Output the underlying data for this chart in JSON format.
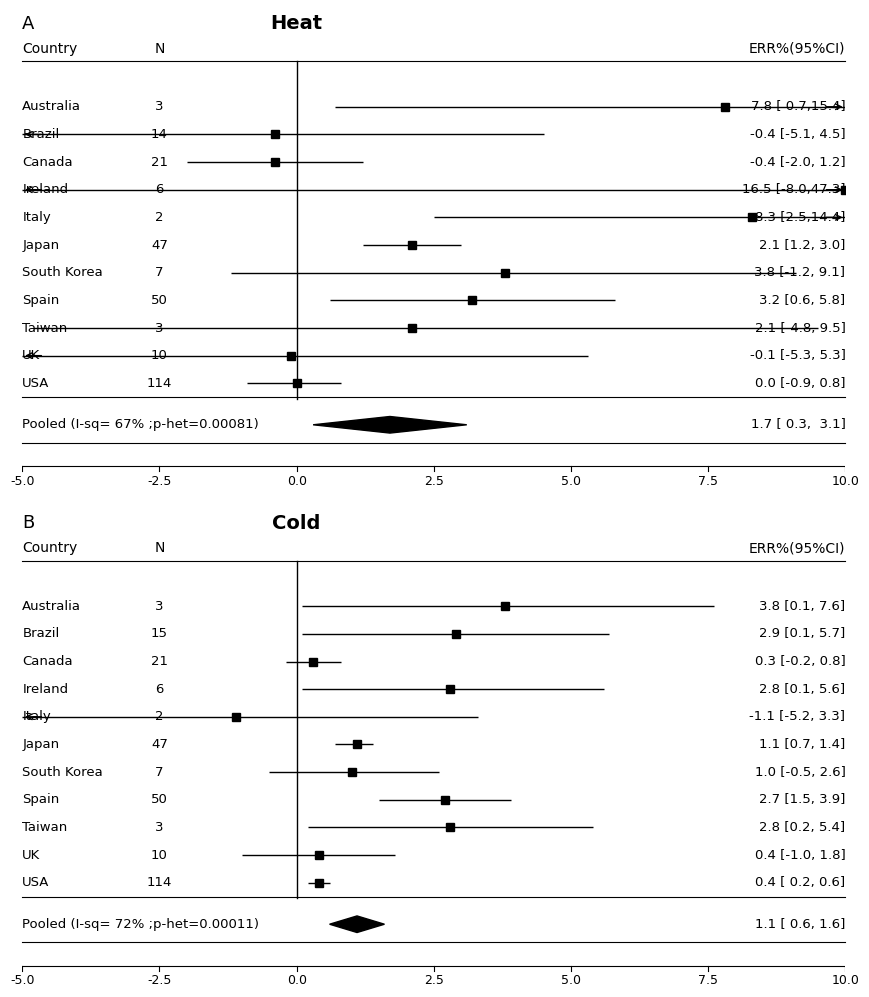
{
  "heat": {
    "title": "Heat",
    "panel_label": "A",
    "countries": [
      "Australia",
      "Brazil",
      "Canada",
      "Ireland",
      "Italy",
      "Japan",
      "South Korea",
      "Spain",
      "Taiwan",
      "UK",
      "USA"
    ],
    "N": [
      3,
      14,
      21,
      6,
      2,
      47,
      7,
      50,
      3,
      10,
      114
    ],
    "mean": [
      7.8,
      -0.4,
      -0.4,
      16.5,
      8.3,
      2.1,
      3.8,
      3.2,
      2.1,
      -0.1,
      0.0
    ],
    "ci_low": [
      0.7,
      -5.1,
      -2.0,
      -8.0,
      2.5,
      1.2,
      -1.2,
      0.6,
      -4.8,
      -5.3,
      -0.9
    ],
    "ci_high": [
      15.4,
      4.5,
      1.2,
      47.3,
      14.4,
      3.0,
      9.1,
      5.8,
      9.5,
      5.3,
      0.8
    ],
    "label": [
      "7.8 [ 0.7,15.4]",
      "-0.4 [-5.1, 4.5]",
      "-0.4 [-2.0, 1.2]",
      "16.5 [-8.0,47.3]",
      "8.3 [2.5,14.4]",
      "2.1 [1.2, 3.0]",
      "3.8 [-1.2, 9.1]",
      "3.2 [0.6, 5.8]",
      "2.1 [-4.8, 9.5]",
      "-0.1 [-5.3, 5.3]",
      "0.0 [-0.9, 0.8]"
    ],
    "pooled_mean": 1.7,
    "pooled_low": 0.3,
    "pooled_high": 3.1,
    "pooled_label": "1.7 [ 0.3,  3.1]",
    "pooled_text": "Pooled (I-sq= 67% ;p-het=0.00081)",
    "xlim": [
      -5.0,
      10.0
    ],
    "xticks": [
      -5.0,
      -2.5,
      0.0,
      2.5,
      5.0,
      7.5,
      10.0
    ],
    "clip_low": -5.0,
    "clip_high": 10.0
  },
  "cold": {
    "title": "Cold",
    "panel_label": "B",
    "countries": [
      "Australia",
      "Brazil",
      "Canada",
      "Ireland",
      "Italy",
      "Japan",
      "South Korea",
      "Spain",
      "Taiwan",
      "UK",
      "USA"
    ],
    "N": [
      3,
      15,
      21,
      6,
      2,
      47,
      7,
      50,
      3,
      10,
      114
    ],
    "mean": [
      3.8,
      2.9,
      0.3,
      2.8,
      -1.1,
      1.1,
      1.0,
      2.7,
      2.8,
      0.4,
      0.4
    ],
    "ci_low": [
      0.1,
      0.1,
      -0.2,
      0.1,
      -5.2,
      0.7,
      -0.5,
      1.5,
      0.2,
      -1.0,
      0.2
    ],
    "ci_high": [
      7.6,
      5.7,
      0.8,
      5.6,
      3.3,
      1.4,
      2.6,
      3.9,
      5.4,
      1.8,
      0.6
    ],
    "label": [
      "3.8 [0.1, 7.6]",
      "2.9 [0.1, 5.7]",
      "0.3 [-0.2, 0.8]",
      "2.8 [0.1, 5.6]",
      "-1.1 [-5.2, 3.3]",
      "1.1 [0.7, 1.4]",
      "1.0 [-0.5, 2.6]",
      "2.7 [1.5, 3.9]",
      "2.8 [0.2, 5.4]",
      "0.4 [-1.0, 1.8]",
      "0.4 [ 0.2, 0.6]"
    ],
    "pooled_mean": 1.1,
    "pooled_low": 0.6,
    "pooled_high": 1.6,
    "pooled_label": "1.1 [ 0.6, 1.6]",
    "pooled_text": "Pooled (I-sq= 72% ;p-het=0.00011)",
    "xlim": [
      -5.0,
      10.0
    ],
    "xticks": [
      -5.0,
      -2.5,
      0.0,
      2.5,
      5.0,
      7.5,
      10.0
    ],
    "clip_low": -5.0,
    "clip_high": 10.0
  }
}
